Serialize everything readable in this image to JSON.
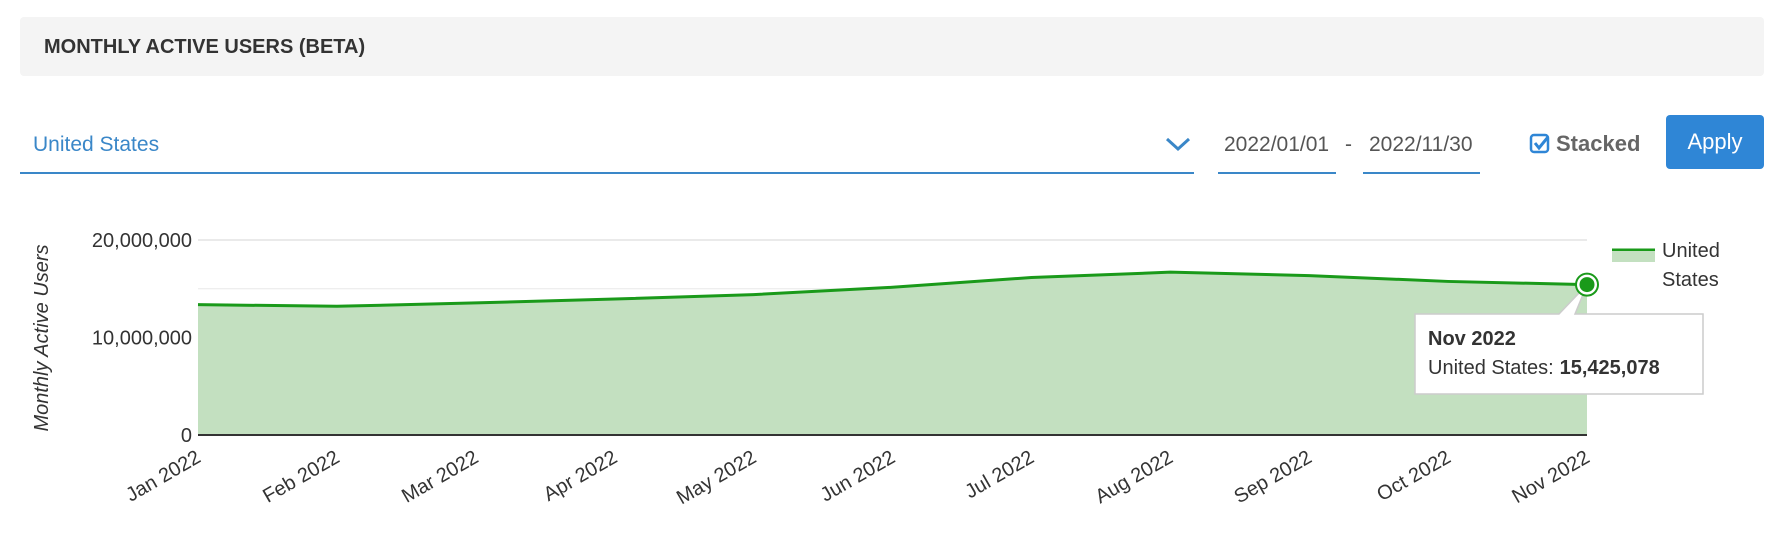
{
  "header": {
    "title": "MONTHLY ACTIVE USERS (BETA)"
  },
  "controls": {
    "country": "United States",
    "date_from": "2022/01/01",
    "date_separator": "-",
    "date_to": "2022/11/30",
    "stacked_label": "Stacked",
    "stacked": true,
    "apply": "Apply"
  },
  "chart_data": {
    "type": "area",
    "y_label": "Monthly Active Users",
    "categories": [
      "Jan 2022",
      "Feb 2022",
      "Mar 2022",
      "Apr 2022",
      "May 2022",
      "Jun 2022",
      "Jul 2022",
      "Aug 2022",
      "Sep 2022",
      "Oct 2022",
      "Nov 2022"
    ],
    "series": [
      {
        "name": "United States",
        "color": "#1a9a1a",
        "fill": "#c3e0c0",
        "values": [
          13370000,
          13200000,
          13550000,
          13950000,
          14400000,
          15150000,
          16150000,
          16700000,
          16350000,
          15750000,
          15425078
        ]
      }
    ],
    "ylim": [
      0,
      20000000
    ],
    "yticks": [
      {
        "value": 0,
        "label": "0"
      },
      {
        "value": 10000000,
        "label": "10,000,000"
      },
      {
        "value": 20000000,
        "label": "20,000,000"
      }
    ],
    "minor_yticks": [
      5000000,
      15000000
    ],
    "grid": true,
    "legend": "right",
    "tooltip": {
      "title": "Nov 2022",
      "series": "United States:",
      "value": {
        "value": 15425078,
        "label": "15,425,078"
      }
    }
  }
}
